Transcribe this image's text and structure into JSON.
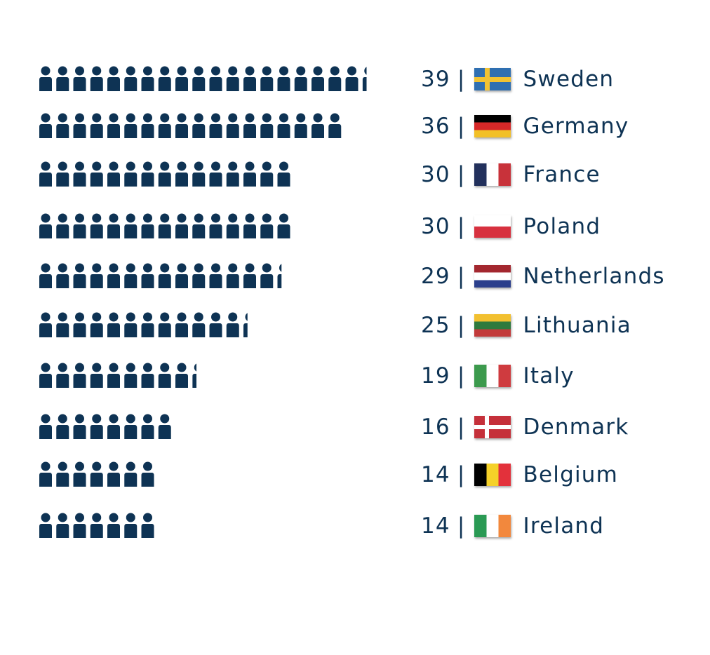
{
  "chart_data": {
    "type": "bar",
    "categories": [
      "Sweden",
      "Germany",
      "France",
      "Poland",
      "Netherlands",
      "Lithuania",
      "Italy",
      "Denmark",
      "Belgium",
      "Ireland"
    ],
    "values": [
      39,
      36,
      30,
      30,
      29,
      25,
      19,
      16,
      14,
      14
    ],
    "title": "",
    "xlabel": "",
    "ylabel": "",
    "separator": "|",
    "icon": "person-icon",
    "icon_color": "#0e3354",
    "flags": [
      {
        "country": "Sweden",
        "colors": [
          "#2f6fb1",
          "#f1c232"
        ]
      },
      {
        "country": "Germany",
        "colors": [
          "#000000",
          "#d62828",
          "#f2c027"
        ]
      },
      {
        "country": "France",
        "colors": [
          "#22305c",
          "#ffffff",
          "#c8323a"
        ]
      },
      {
        "country": "Poland",
        "colors": [
          "#ffffff",
          "#d7313f"
        ]
      },
      {
        "country": "Netherlands",
        "colors": [
          "#a3272f",
          "#ffffff",
          "#2b3f8c"
        ]
      },
      {
        "country": "Lithuania",
        "colors": [
          "#f2c030",
          "#2e7a3d",
          "#c23a3a"
        ]
      },
      {
        "country": "Italy",
        "colors": [
          "#3c9a4d",
          "#ffffff",
          "#cf3b3f"
        ]
      },
      {
        "country": "Denmark",
        "colors": [
          "#c5303a",
          "#ffffff"
        ]
      },
      {
        "country": "Belgium",
        "colors": [
          "#000000",
          "#f5d129",
          "#e3313b"
        ]
      },
      {
        "country": "Ireland",
        "colors": [
          "#2a9a54",
          "#ffffff",
          "#f2883d"
        ]
      }
    ]
  }
}
